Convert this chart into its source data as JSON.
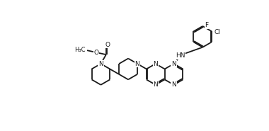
{
  "bg_color": "#ffffff",
  "line_color": "#1a1a1a",
  "line_width": 1.3,
  "font_size": 6.5,
  "figsize": [
    3.8,
    1.85
  ],
  "dpi": 100,
  "xlim": [
    0,
    38
  ],
  "ylim": [
    0,
    18.5
  ]
}
